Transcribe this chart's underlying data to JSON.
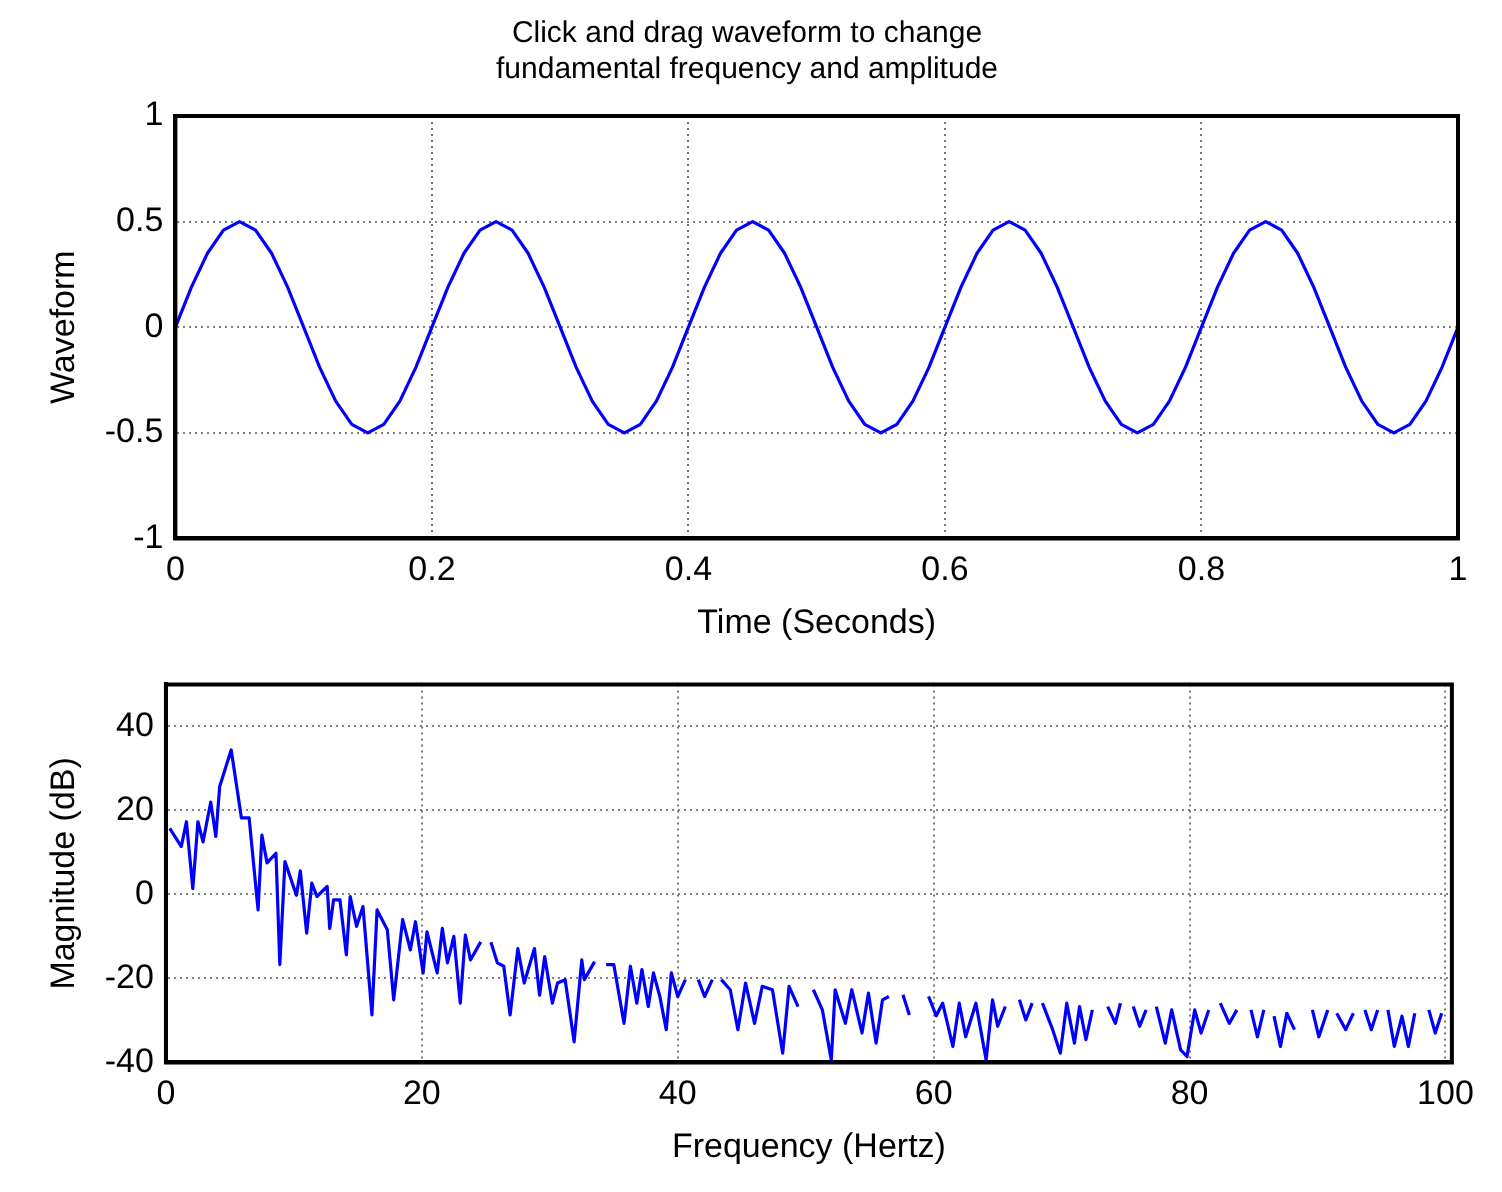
{
  "chart_data": [
    {
      "type": "line",
      "title": "Click and drag waveform to change\nfundamental frequency and amplitude",
      "xlabel": "Time (Seconds)",
      "ylabel": "Waveform",
      "xlim": [
        0,
        1
      ],
      "ylim": [
        -1,
        1
      ],
      "xticks": [
        0,
        0.2,
        0.4,
        0.6,
        0.8,
        1
      ],
      "yticks": [
        -1,
        -0.5,
        0,
        0.5,
        1
      ],
      "grid": true,
      "legend": false,
      "marker": "none",
      "line_style": "solid",
      "series": [
        {
          "color": "#0000ff",
          "x": [
            0,
            0.0125,
            0.025,
            0.0375,
            0.05,
            0.0625,
            0.075,
            0.0875,
            0.1,
            0.1125,
            0.125,
            0.1375,
            0.15,
            0.1625,
            0.175,
            0.1875,
            0.2,
            0.2125,
            0.225,
            0.2375,
            0.25,
            0.2625,
            0.275,
            0.2875,
            0.3,
            0.3125,
            0.325,
            0.3375,
            0.35,
            0.3625,
            0.375,
            0.3875,
            0.4,
            0.4125,
            0.425,
            0.4375,
            0.45,
            0.4625,
            0.475,
            0.4875,
            0.5,
            0.5125,
            0.525,
            0.5375,
            0.55,
            0.5625,
            0.575,
            0.5875,
            0.6,
            0.6125,
            0.625,
            0.6375,
            0.65,
            0.6625,
            0.675,
            0.6875,
            0.7,
            0.7125,
            0.725,
            0.7375,
            0.75,
            0.7625,
            0.775,
            0.7875,
            0.8,
            0.8125,
            0.825,
            0.8375,
            0.85,
            0.8625,
            0.875,
            0.8875,
            0.9,
            0.9125,
            0.925,
            0.9375,
            0.95,
            0.9625,
            0.975,
            0.9875,
            1
          ],
          "values": [
            0,
            0.19,
            0.35,
            0.46,
            0.5,
            0.46,
            0.35,
            0.19,
            0,
            -0.19,
            -0.35,
            -0.46,
            -0.5,
            -0.46,
            -0.35,
            -0.19,
            0,
            0.19,
            0.35,
            0.46,
            0.5,
            0.46,
            0.35,
            0.19,
            0,
            -0.19,
            -0.35,
            -0.46,
            -0.5,
            -0.46,
            -0.35,
            -0.19,
            0,
            0.19,
            0.35,
            0.46,
            0.5,
            0.46,
            0.35,
            0.19,
            0,
            -0.19,
            -0.35,
            -0.46,
            -0.5,
            -0.46,
            -0.35,
            -0.19,
            0,
            0.19,
            0.35,
            0.46,
            0.5,
            0.46,
            0.35,
            0.19,
            0,
            -0.19,
            -0.35,
            -0.46,
            -0.5,
            -0.46,
            -0.35,
            -0.19,
            0,
            0.19,
            0.35,
            0.46,
            0.5,
            0.46,
            0.35,
            0.19,
            0,
            -0.19,
            -0.35,
            -0.46,
            -0.5,
            -0.46,
            -0.35,
            -0.19,
            0
          ]
        }
      ]
    },
    {
      "type": "line",
      "xlabel": "Frequency (Hertz)",
      "ylabel": "Magnitude (dB)",
      "xlim": [
        0,
        100.5
      ],
      "ylim": [
        -40,
        50
      ],
      "xticks": [
        0,
        20,
        40,
        60,
        80,
        100
      ],
      "yticks": [
        -40,
        -20,
        0,
        20,
        40
      ],
      "grid": true,
      "legend": false,
      "marker": "none",
      "line_style": "solid",
      "series": [
        {
          "color": "#0000ff",
          "x": [
            0.3,
            1.2,
            1.6,
            2.1,
            2.5,
            2.9,
            3.5,
            3.9,
            4.2,
            5.1,
            5.9,
            6.5,
            7.2,
            7.5,
            7.9,
            8.6,
            8.9,
            9.3,
            10.2,
            10.5,
            11,
            11.4,
            11.8,
            12.6,
            12.8,
            13.1,
            13.6,
            14.1,
            14.4,
            14.9,
            15.4,
            16.1,
            16.5,
            17.3,
            17.8,
            18.5,
            19.1,
            19.5,
            20.1,
            20.4,
            21.2,
            21.6,
            22,
            22.5,
            23,
            23.4,
            23.8,
            24.6,
            25,
            25.4,
            25.9,
            26.4,
            26.9,
            27.5,
            28,
            28.8,
            29.2,
            29.6,
            30.2,
            30.6,
            31.2,
            31.9,
            32.5,
            32.7,
            33.5,
            34,
            34.4,
            35,
            35.8,
            36.3,
            36.8,
            37.2,
            37.7,
            38.1,
            38.6,
            39.1,
            39.5,
            40,
            40.6,
            41.1,
            41.6,
            42.1,
            42.7,
            43,
            43.4,
            44.1,
            44.7,
            45.3,
            46,
            46.6,
            47.4,
            48.2,
            48.7,
            49.4,
            50,
            50.6,
            51.3,
            52,
            52.3,
            53.1,
            53.6,
            54.4,
            54.9,
            55.5,
            56,
            56.5,
            57,
            57.6,
            58.1,
            59,
            59.6,
            60.2,
            60.7,
            61.5,
            62,
            62.5,
            63.3,
            64.1,
            64.6,
            65,
            65.6,
            66.2,
            66.7,
            67.2,
            67.7,
            68,
            68.5,
            69.3,
            69.9,
            70.4,
            71,
            71.4,
            71.9,
            72.4,
            73,
            73.6,
            74.2,
            74.6,
            75.1,
            75.6,
            76.1,
            76.6,
            77,
            77.4,
            78.1,
            78.6,
            79.3,
            79.8,
            80.4,
            80.9,
            81.5,
            82,
            82.4,
            83.1,
            83.7,
            84.2,
            84.8,
            85.3,
            85.8,
            86.2,
            86.6,
            87.1,
            87.6,
            88.2,
            89,
            89.6,
            90.1,
            90.8,
            91.2,
            91.5,
            92.2,
            92.8,
            93.2,
            93.7,
            94.2,
            94.7,
            95.1,
            95.5,
            96,
            96.6,
            97.1,
            97.6,
            98.2,
            98.7,
            99.2,
            99.7
          ],
          "values": [
            15.7,
            11.4,
            17.3,
            1.4,
            17.3,
            12.5,
            22,
            13.8,
            25.7,
            34.4,
            18.2,
            18.2,
            -3.7,
            14.1,
            7.5,
            9.8,
            -16.7,
            7.8,
            -0.2,
            5.6,
            -9.2,
            2.7,
            -0.5,
            1.9,
            -8.1,
            -1.3,
            -1.3,
            -14.4,
            -0.5,
            -7.6,
            -2.9,
            -28.7,
            -3.7,
            -8.4,
            -25.1,
            -6,
            -13.2,
            -6.5,
            -18.7,
            -8.9,
            -18.7,
            -8.1,
            -16.3,
            -10,
            -25.9,
            -9.7,
            -15.6,
            -11.3,
            null,
            -11.4,
            -16.3,
            -17.1,
            -28.7,
            -12.9,
            -21.1,
            -12.9,
            -24,
            -14.8,
            -25.9,
            -21.1,
            -20.3,
            -35.1,
            -15.6,
            -20.3,
            -16,
            null,
            -16.7,
            -16.7,
            -30.7,
            -17.1,
            -25.9,
            -17.9,
            -26.7,
            -18.7,
            -24.3,
            -32.2,
            -18.7,
            -24.3,
            -20.3,
            null,
            -20.3,
            -24.3,
            -20.3,
            null,
            -20.3,
            -22.7,
            -32.2,
            -21.1,
            -30.7,
            -21.9,
            -22.7,
            -37.8,
            -21.9,
            -26.7,
            null,
            -22.7,
            -27.5,
            -39.4,
            -22.7,
            -30.7,
            -22.7,
            -33,
            -23.5,
            -35.4,
            -25.1,
            -24.3,
            null,
            -23.9,
            -28.7,
            null,
            -24.3,
            -28.9,
            -25.9,
            -36.2,
            -25.9,
            -33.9,
            -25.9,
            -39.4,
            -25.1,
            -31.4,
            -26.7,
            null,
            -25.1,
            -29.9,
            -25.9,
            null,
            -25.9,
            -32.2,
            -37.8,
            -25.9,
            -35.4,
            -26.7,
            -34.6,
            -27.5,
            null,
            -26.7,
            -30.7,
            -25.9,
            null,
            -26.7,
            -31.4,
            -27.5,
            null,
            -26.7,
            -35.4,
            -27.5,
            -37,
            -38.6,
            -27.5,
            -33,
            -27.5,
            null,
            -25.9,
            -30.7,
            -27.5,
            null,
            -27.5,
            -33.9,
            -27.5,
            null,
            -29,
            -36.2,
            -28.3,
            -32.2,
            null,
            -27.5,
            -33.9,
            -27.5,
            null,
            -28.3,
            -32.2,
            -28.3,
            null,
            -27.5,
            -32.2,
            -27.5,
            null,
            -27.5,
            -36.2,
            -29,
            -36.2,
            -28.3,
            null,
            -27.5,
            -33,
            -28.3
          ]
        }
      ]
    }
  ]
}
